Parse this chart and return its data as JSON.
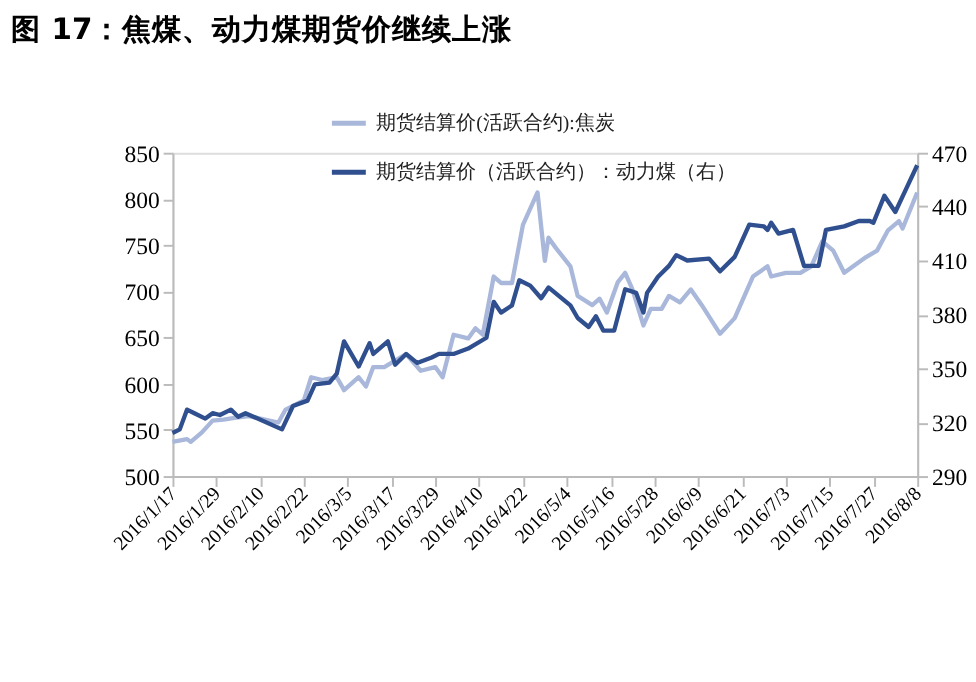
{
  "chart_data": {
    "type": "line",
    "title": "图 17：焦煤、动力煤期货价继续上涨",
    "legend": "top",
    "grid": false,
    "marker": "none",
    "line_style": "solid",
    "xlim": [
      "2016-01-17",
      "2016-08-08"
    ],
    "xticks": [
      {
        "value": "2016-01-17",
        "label": "2016/1/17"
      },
      {
        "value": "2016-01-29",
        "label": "2016/1/29"
      },
      {
        "value": "2016-02-10",
        "label": "2016/2/10"
      },
      {
        "value": "2016-02-22",
        "label": "2016/2/22"
      },
      {
        "value": "2016-03-05",
        "label": "2016/3/5"
      },
      {
        "value": "2016-03-17",
        "label": "2016/3/17"
      },
      {
        "value": "2016-03-29",
        "label": "2016/3/29"
      },
      {
        "value": "2016-04-10",
        "label": "2016/4/10"
      },
      {
        "value": "2016-04-22",
        "label": "2016/4/22"
      },
      {
        "value": "2016-05-04",
        "label": "2016/5/4"
      },
      {
        "value": "2016-05-16",
        "label": "2016/5/16"
      },
      {
        "value": "2016-05-28",
        "label": "2016/5/28"
      },
      {
        "value": "2016-06-09",
        "label": "2016/6/9"
      },
      {
        "value": "2016-06-21",
        "label": "2016/6/21"
      },
      {
        "value": "2016-07-03",
        "label": "2016/7/3"
      },
      {
        "value": "2016-07-15",
        "label": "2016/7/15"
      },
      {
        "value": "2016-07-27",
        "label": "2016/7/27"
      },
      {
        "value": "2016-08-08",
        "label": "2016/8/8"
      }
    ],
    "ylim": [
      500,
      850
    ],
    "yticks": [
      500,
      550,
      600,
      650,
      700,
      750,
      800,
      850
    ],
    "y2lim": [
      290,
      470
    ],
    "y2ticks": [
      290,
      320,
      350,
      380,
      410,
      440,
      470
    ],
    "series": [
      {
        "name": "期货结算价(活跃合约):焦炭",
        "color": "#a9b8da",
        "x": [
          "2016-01-17",
          "2016-01-21",
          "2016-01-22",
          "2016-01-25",
          "2016-01-28",
          "2016-01-31",
          "2016-02-03",
          "2016-02-07",
          "2016-02-15",
          "2016-02-17",
          "2016-02-22",
          "2016-02-24",
          "2016-02-27",
          "2016-03-02",
          "2016-03-04",
          "2016-03-08",
          "2016-03-10",
          "2016-03-12",
          "2016-03-15",
          "2016-03-18",
          "2016-03-21",
          "2016-03-25",
          "2016-03-29",
          "2016-03-31",
          "2016-04-03",
          "2016-04-07",
          "2016-04-09",
          "2016-04-11",
          "2016-04-14",
          "2016-04-16",
          "2016-04-19",
          "2016-04-22",
          "2016-04-26",
          "2016-04-28",
          "2016-04-29",
          "2016-05-01",
          "2016-05-05",
          "2016-05-07",
          "2016-05-11",
          "2016-05-13",
          "2016-05-15",
          "2016-05-18",
          "2016-05-20",
          "2016-05-22",
          "2016-05-25",
          "2016-05-27",
          "2016-05-30",
          "2016-06-01",
          "2016-06-04",
          "2016-06-07",
          "2016-06-10",
          "2016-06-15",
          "2016-06-19",
          "2016-06-24",
          "2016-06-28",
          "2016-06-29",
          "2016-07-03",
          "2016-07-07",
          "2016-07-10",
          "2016-07-13",
          "2016-07-16",
          "2016-07-19",
          "2016-07-25",
          "2016-07-28",
          "2016-07-31",
          "2016-08-03",
          "2016-08-04",
          "2016-08-08"
        ],
        "values": [
          537,
          540,
          537,
          547,
          560,
          561,
          563,
          565,
          558,
          572,
          582,
          607,
          604,
          607,
          593,
          607,
          597,
          618,
          618,
          625,
          632,
          614,
          618,
          607,
          653,
          649,
          660,
          653,
          716,
          709,
          709,
          772,
          807,
          733,
          758,
          747,
          727,
          695,
          685,
          692,
          677,
          710,
          720,
          702,
          663,
          681,
          681,
          695,
          688,
          702,
          685,
          654,
          671,
          716,
          727,
          716,
          720,
          720,
          727,
          754,
          744,
          720,
          737,
          744,
          766,
          776,
          768,
          807
        ]
      },
      {
        "name": "期货结算价（活跃合约）：动力煤（右）",
        "color": "#2f4f8e",
        "axis": "y2",
        "x": [
          "2016-01-17",
          "2016-01-19",
          "2016-01-21",
          "2016-01-23",
          "2016-01-26",
          "2016-01-28",
          "2016-01-30",
          "2016-02-02",
          "2016-02-04",
          "2016-02-06",
          "2016-02-16",
          "2016-02-19",
          "2016-02-23",
          "2016-02-25",
          "2016-02-29",
          "2016-03-02",
          "2016-03-04",
          "2016-03-08",
          "2016-03-11",
          "2016-03-12",
          "2016-03-16",
          "2016-03-18",
          "2016-03-21",
          "2016-03-24",
          "2016-03-28",
          "2016-03-30",
          "2016-04-03",
          "2016-04-07",
          "2016-04-12",
          "2016-04-14",
          "2016-04-16",
          "2016-04-19",
          "2016-04-21",
          "2016-04-24",
          "2016-04-27",
          "2016-04-29",
          "2016-05-02",
          "2016-05-05",
          "2016-05-07",
          "2016-05-10",
          "2016-05-12",
          "2016-05-14",
          "2016-05-17",
          "2016-05-20",
          "2016-05-23",
          "2016-05-25",
          "2016-05-26",
          "2016-05-29",
          "2016-06-01",
          "2016-06-03",
          "2016-06-06",
          "2016-06-12",
          "2016-06-15",
          "2016-06-19",
          "2016-06-23",
          "2016-06-27",
          "2016-06-28",
          "2016-06-29",
          "2016-07-01",
          "2016-07-05",
          "2016-07-08",
          "2016-07-12",
          "2016-07-14",
          "2016-07-19",
          "2016-07-23",
          "2016-07-26",
          "2016-07-27",
          "2016-07-30",
          "2016-08-02",
          "2016-08-05",
          "2016-08-08"
        ],
        "values": [
          314,
          316,
          327,
          325,
          322,
          325,
          324,
          327,
          323,
          325,
          316,
          329,
          332,
          341,
          342,
          347,
          365,
          351,
          364,
          358,
          365,
          352,
          358,
          353,
          356,
          358,
          358,
          361,
          367,
          387,
          381,
          385,
          399,
          396,
          389,
          395,
          390,
          385,
          378,
          373,
          379,
          371,
          371,
          394,
          392,
          381,
          392,
          401,
          407,
          413,
          410,
          411,
          404,
          412,
          430,
          429,
          427,
          431,
          425,
          427,
          407,
          407,
          427,
          429,
          432,
          432,
          431,
          446,
          437,
          450,
          463
        ]
      }
    ]
  }
}
